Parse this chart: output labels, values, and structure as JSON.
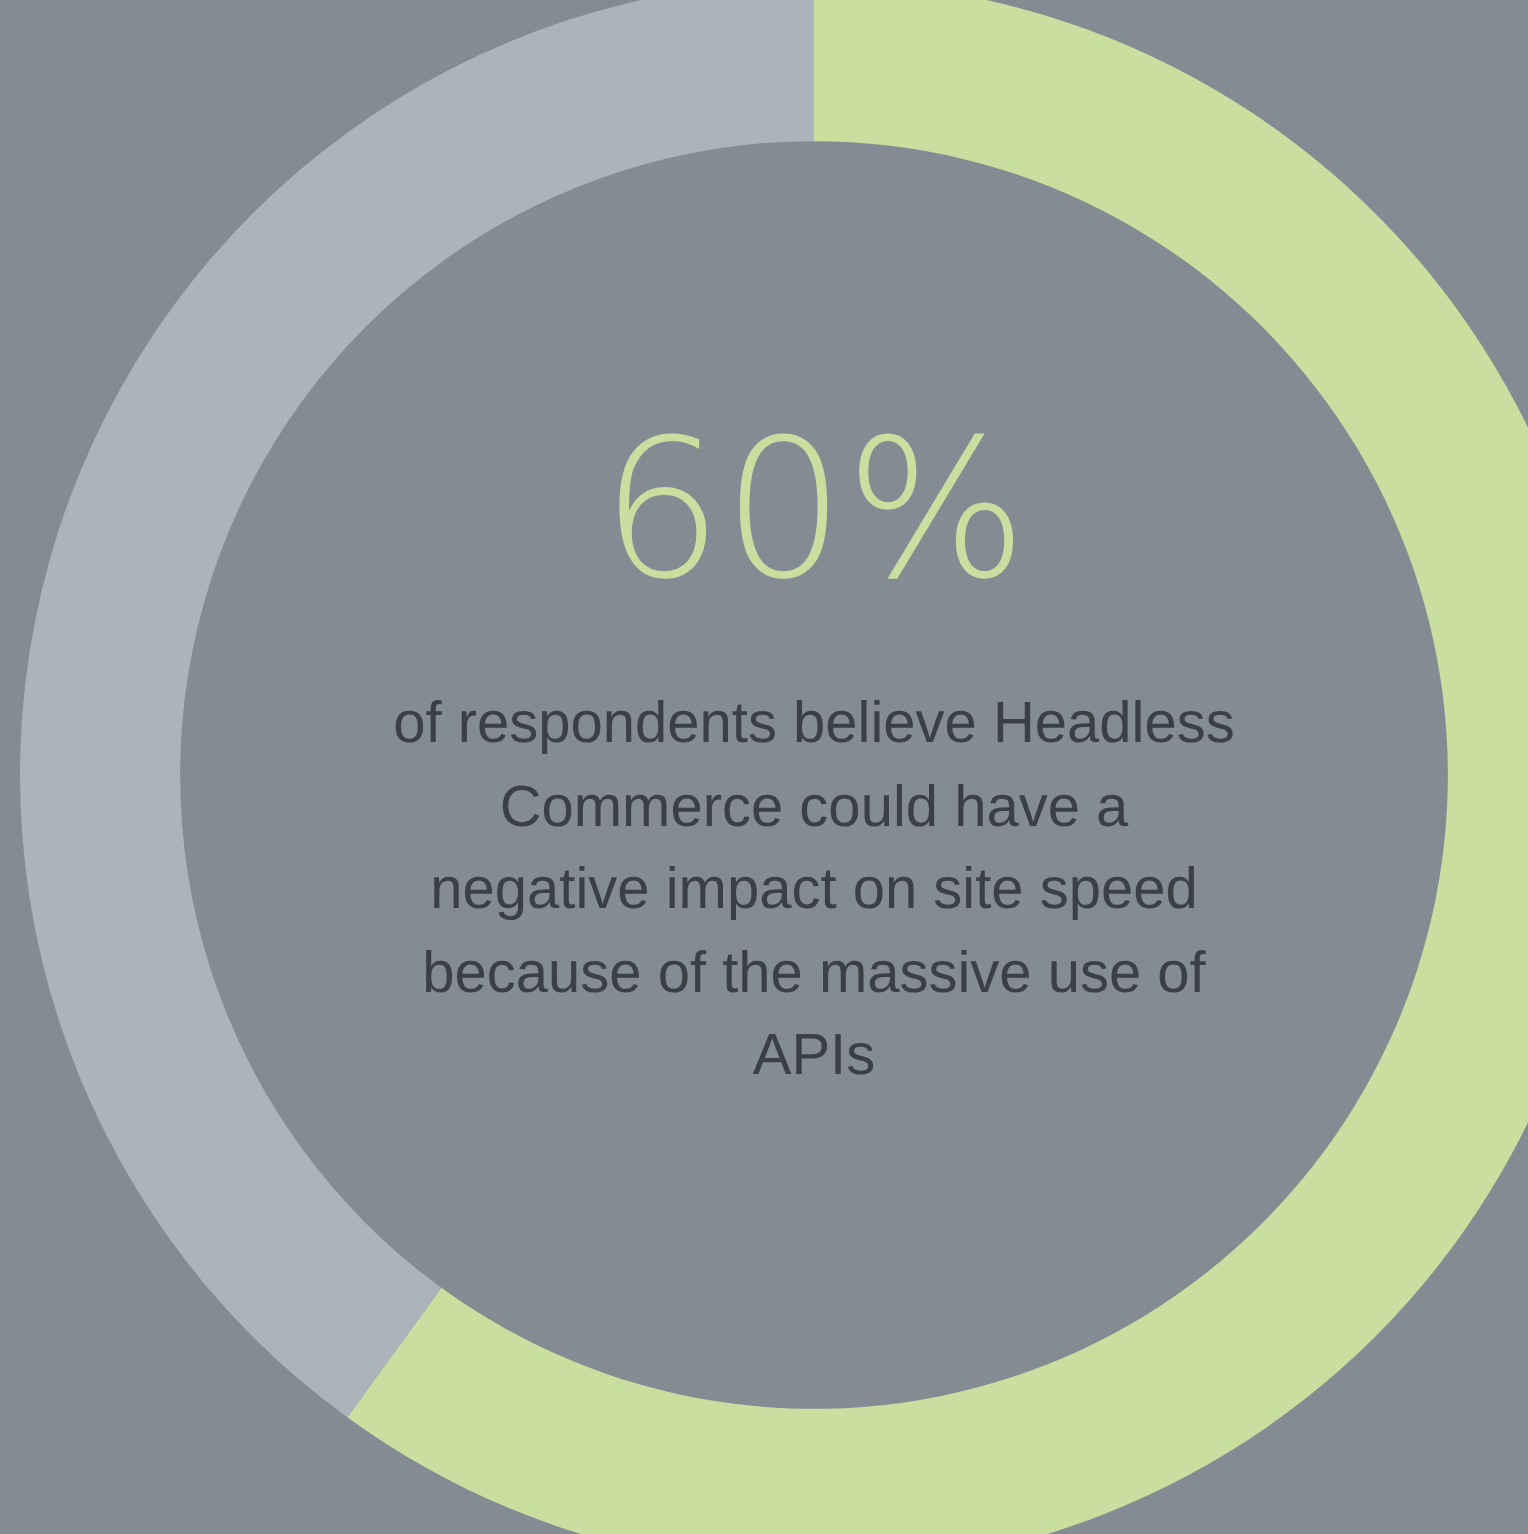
{
  "chart_data": {
    "type": "donut",
    "title": "60%",
    "subtitle": "of respondents believe Headless Commerce could have a negative impact on site speed because of the massive use of APIs",
    "categories": [
      null,
      null
    ],
    "values": [
      60,
      40
    ],
    "colors": [
      "#c8dfa0",
      "#adb3bb"
    ],
    "legend": false
  }
}
